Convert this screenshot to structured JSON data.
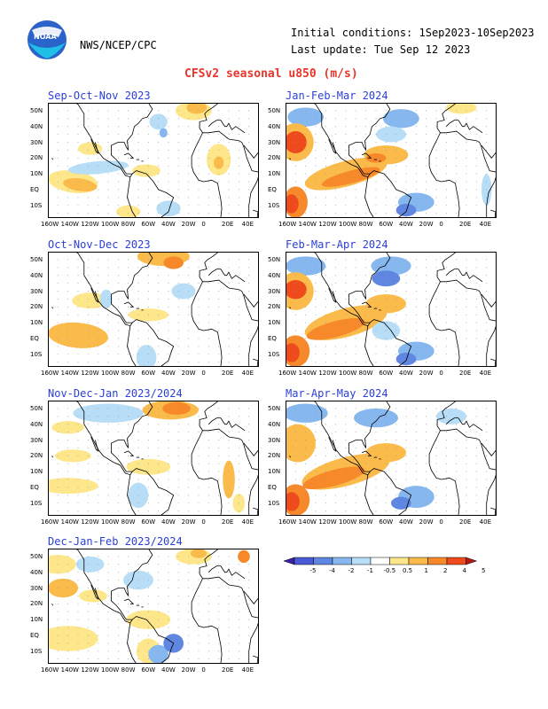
{
  "header": {
    "logo_text": "NOAA",
    "agency": "NWS/NCEP/CPC",
    "initial_conditions": "Initial conditions: 1Sep2023-10Sep2023",
    "last_update": "Last update: Tue Sep 12 2023",
    "title": "CFSv2 seasonal u850 (m/s)"
  },
  "lat_labels": [
    "50N",
    "40N",
    "30N",
    "20N",
    "10N",
    "EQ",
    "10S"
  ],
  "lon_labels": [
    "160W",
    "140W",
    "120W",
    "100W",
    "80W",
    "60W",
    "40W",
    "20W",
    "0",
    "20E",
    "40E"
  ],
  "panels": [
    {
      "title": "Sep-Oct-Nov 2023"
    },
    {
      "title": "Jan-Feb-Mar 2024"
    },
    {
      "title": "Oct-Nov-Dec 2023"
    },
    {
      "title": "Feb-Mar-Apr 2024"
    },
    {
      "title": "Nov-Dec-Jan 2023/2024"
    },
    {
      "title": "Mar-Apr-May 2024"
    },
    {
      "title": "Dec-Jan-Feb 2023/2024"
    }
  ],
  "colorbar": {
    "labels": [
      "-5",
      "-4",
      "-2",
      "-1",
      "-0.5",
      "0.5",
      "1",
      "2",
      "4",
      "5"
    ],
    "colors": [
      "#3a1fa8",
      "#4a5ad6",
      "#5f86e0",
      "#86b7ee",
      "#b7def6",
      "#ffffff",
      "#fde78a",
      "#fbbb4a",
      "#f7892a",
      "#ee4a1c",
      "#b41a12"
    ]
  },
  "palette": {
    "pos1": "#fde78a",
    "pos2": "#fbbb4a",
    "pos3": "#f7892a",
    "pos4": "#ee4a1c",
    "neg1": "#b7def6",
    "neg2": "#86b7ee",
    "neg3": "#5f86e0",
    "title_red": "#e8342a",
    "panel_title_blue": "#2b3fd6"
  }
}
